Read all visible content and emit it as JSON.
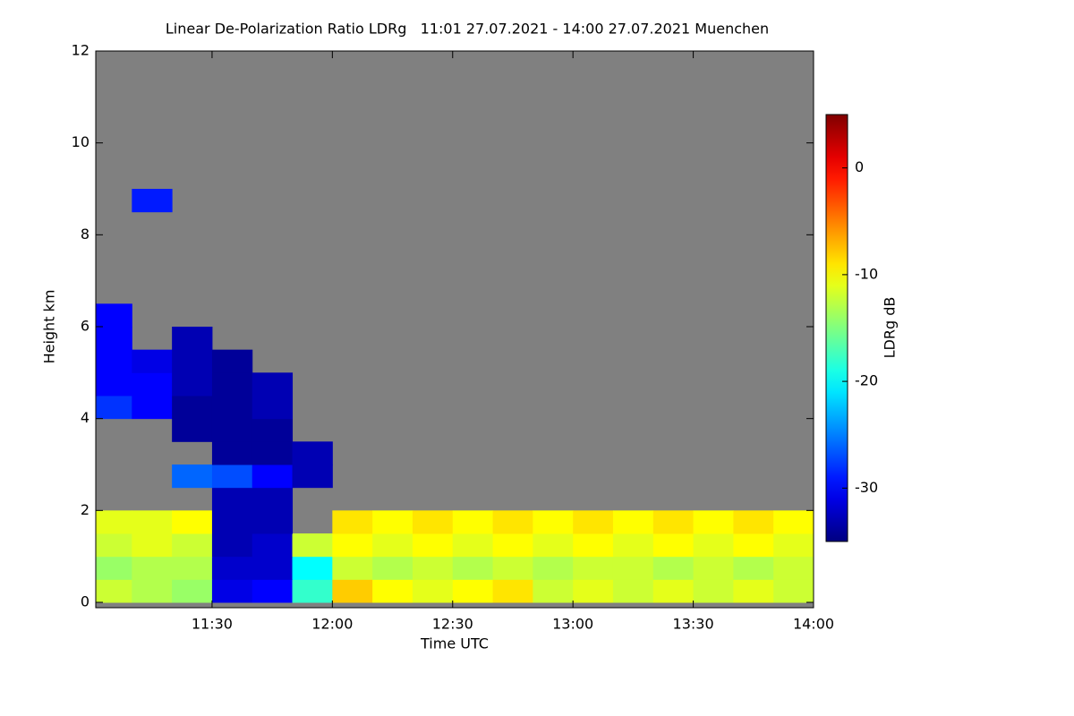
{
  "chart_data": {
    "type": "heatmap",
    "title": "Linear De-Polarization Ratio LDRg   11:01 27.07.2021 - 14:00 27.07.2021 Muenchen",
    "x_label": "Time UTC",
    "y_label": "Height km",
    "colorbar_label": "LDRg dB",
    "xlim": [
      "11:01",
      "14:00"
    ],
    "xticks": [
      "11:30",
      "12:00",
      "12:30",
      "13:00",
      "13:30",
      "14:00"
    ],
    "ylim": [
      0,
      12
    ],
    "yticks": [
      0,
      2,
      4,
      6,
      8,
      10,
      12
    ],
    "zlim": [
      -35,
      5
    ],
    "zticks": [
      -30,
      -20,
      -10,
      0
    ],
    "colormap": "jet",
    "missing_color": "#808080",
    "x": [
      "11:01",
      "11:10",
      "11:20",
      "11:30",
      "11:40",
      "11:50",
      "12:00",
      "12:10",
      "12:20",
      "12:30",
      "12:40",
      "12:50",
      "13:00",
      "13:10",
      "13:20",
      "13:30",
      "13:40",
      "13:50"
    ],
    "y_bins": [
      0,
      0.5,
      1,
      1.5,
      2,
      2.5,
      3,
      3.5,
      4,
      4.5,
      5,
      5.5,
      6,
      6.5,
      8.5,
      9
    ],
    "z": [
      [
        -12,
        -13,
        -14,
        -31,
        -30,
        -18,
        -8,
        -10,
        -11,
        -10,
        -9,
        -12,
        -11,
        -12,
        -11,
        -12,
        -11,
        -12
      ],
      [
        -14,
        -13,
        -13,
        -32,
        -32,
        -20,
        -12,
        -13,
        -12,
        -13,
        -12,
        -13,
        -12,
        -12,
        -13,
        -12,
        -13,
        -12
      ],
      [
        -12,
        -11,
        -12,
        -33,
        -32,
        -12,
        -10,
        -11,
        -10,
        -11,
        -10,
        -11,
        -10,
        -11,
        -10,
        -11,
        -10,
        -11
      ],
      [
        -11,
        -11,
        -10,
        -33,
        -33,
        null,
        -9,
        -10,
        -9,
        -10,
        -9,
        -10,
        -9,
        -10,
        -9,
        -10,
        -9,
        -10
      ],
      [
        null,
        null,
        null,
        -33,
        -33,
        null,
        null,
        null,
        null,
        null,
        null,
        null,
        null,
        null,
        null,
        null,
        null,
        null
      ],
      [
        null,
        null,
        -26,
        -27,
        -30,
        -33,
        null,
        null,
        null,
        null,
        null,
        null,
        null,
        null,
        null,
        null,
        null,
        null
      ],
      [
        null,
        null,
        null,
        -34,
        -34,
        -33,
        null,
        null,
        null,
        null,
        null,
        null,
        null,
        null,
        null,
        null,
        null,
        null
      ],
      [
        null,
        null,
        -34,
        -34,
        -34,
        null,
        null,
        null,
        null,
        null,
        null,
        null,
        null,
        null,
        null,
        null,
        null,
        null
      ],
      [
        -28,
        -30,
        -34,
        -34,
        -33,
        null,
        null,
        null,
        null,
        null,
        null,
        null,
        null,
        null,
        null,
        null,
        null,
        null
      ],
      [
        -30,
        -30,
        -33,
        -34,
        -33,
        null,
        null,
        null,
        null,
        null,
        null,
        null,
        null,
        null,
        null,
        null,
        null,
        null
      ],
      [
        -30,
        -31,
        -33,
        -34,
        null,
        null,
        null,
        null,
        null,
        null,
        null,
        null,
        null,
        null,
        null,
        null,
        null,
        null
      ],
      [
        -30,
        null,
        -33,
        null,
        null,
        null,
        null,
        null,
        null,
        null,
        null,
        null,
        null,
        null,
        null,
        null,
        null,
        null
      ],
      [
        -30,
        null,
        null,
        null,
        null,
        null,
        null,
        null,
        null,
        null,
        null,
        null,
        null,
        null,
        null,
        null,
        null,
        null
      ],
      [
        null,
        null,
        null,
        null,
        null,
        null,
        null,
        null,
        null,
        null,
        null,
        null,
        null,
        null,
        null,
        null,
        null,
        null
      ],
      [
        null,
        -29,
        null,
        null,
        null,
        null,
        null,
        null,
        null,
        null,
        null,
        null,
        null,
        null,
        null,
        null,
        null,
        null
      ]
    ]
  }
}
